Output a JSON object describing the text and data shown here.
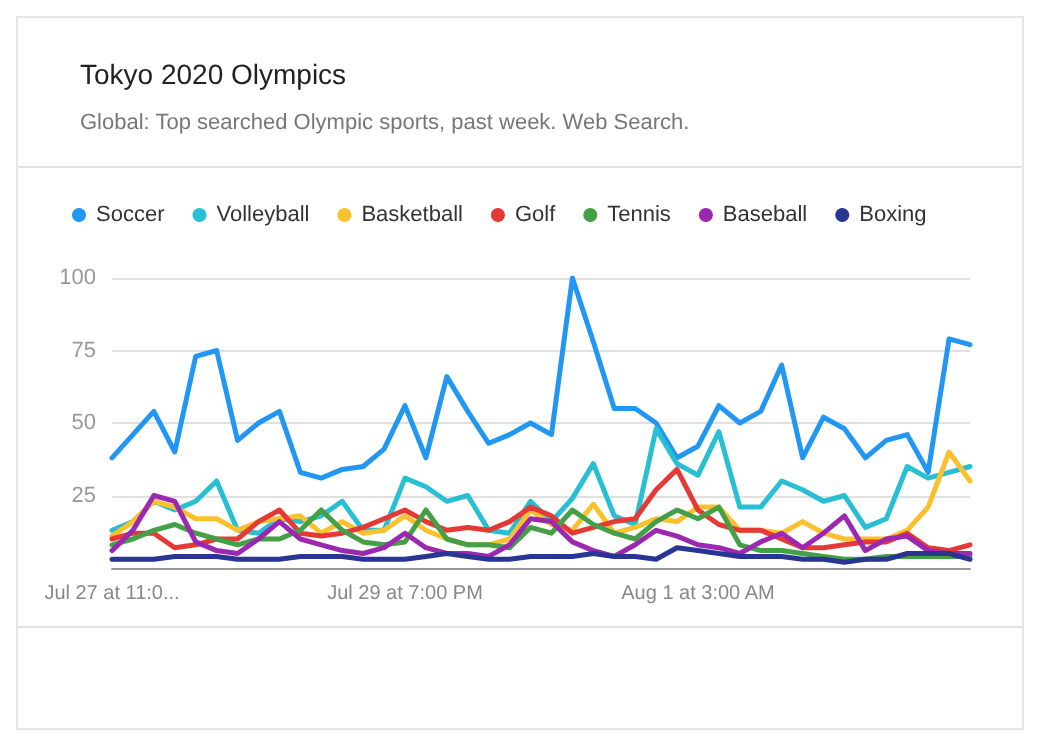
{
  "chart_data": {
    "type": "line",
    "title": "Tokyo 2020 Olympics",
    "subtitle": "Global: Top searched Olympic sports, past week. Web Search.",
    "categories": [
      "Jul 27 at 11:0...",
      null,
      null,
      null,
      null,
      null,
      null,
      null,
      null,
      null,
      null,
      null,
      null,
      null,
      "Jul 29 at 7:00 PM",
      null,
      null,
      null,
      null,
      null,
      null,
      null,
      null,
      null,
      null,
      null,
      null,
      null,
      "Aug 1 at 3:00 AM",
      null,
      null,
      null,
      null,
      null,
      null,
      null,
      null,
      null,
      null,
      null,
      null,
      null
    ],
    "series": [
      {
        "name": "Soccer",
        "color": "#2196f3",
        "values": [
          38,
          46,
          54,
          40,
          73,
          75,
          44,
          50,
          54,
          33,
          31,
          34,
          35,
          41,
          56,
          38,
          66,
          54,
          43,
          46,
          50,
          46,
          100,
          78,
          55,
          55,
          50,
          38,
          42,
          56,
          50,
          54,
          70,
          38,
          52,
          48,
          38,
          44,
          46,
          33,
          79,
          77
        ]
      },
      {
        "name": "Volleyball",
        "color": "#26bfd3",
        "values": [
          13,
          16,
          23,
          20,
          23,
          30,
          13,
          12,
          17,
          16,
          18,
          23,
          13,
          13,
          31,
          28,
          23,
          25,
          13,
          12,
          23,
          16,
          24,
          36,
          18,
          15,
          48,
          36,
          32,
          47,
          21,
          21,
          30,
          27,
          23,
          25,
          14,
          17,
          35,
          31,
          33,
          35
        ]
      },
      {
        "name": "Basketball",
        "color": "#fbc02d",
        "values": [
          11,
          16,
          23,
          21,
          17,
          17,
          13,
          16,
          17,
          18,
          12,
          16,
          12,
          13,
          18,
          13,
          10,
          8,
          8,
          10,
          20,
          15,
          13,
          22,
          12,
          14,
          17,
          16,
          21,
          21,
          13,
          13,
          12,
          16,
          12,
          10,
          10,
          10,
          13,
          21,
          40,
          30
        ]
      },
      {
        "name": "Golf",
        "color": "#e53935",
        "values": [
          10,
          12,
          12,
          7,
          8,
          10,
          10,
          16,
          20,
          12,
          11,
          12,
          14,
          17,
          20,
          16,
          13,
          14,
          13,
          16,
          21,
          18,
          12,
          14,
          16,
          17,
          27,
          34,
          20,
          15,
          13,
          13,
          10,
          7,
          7,
          8,
          9,
          9,
          12,
          7,
          6,
          8
        ]
      },
      {
        "name": "Tennis",
        "color": "#43a047",
        "values": [
          8,
          10,
          13,
          15,
          12,
          10,
          8,
          10,
          10,
          13,
          20,
          13,
          9,
          8,
          9,
          20,
          10,
          8,
          8,
          7,
          14,
          12,
          20,
          15,
          12,
          10,
          16,
          20,
          17,
          21,
          8,
          6,
          6,
          5,
          4,
          3,
          3,
          4,
          4,
          4,
          4,
          4
        ]
      },
      {
        "name": "Baseball",
        "color": "#9c27b0",
        "values": [
          6,
          13,
          25,
          23,
          9,
          6,
          5,
          10,
          16,
          10,
          8,
          6,
          5,
          7,
          12,
          7,
          5,
          5,
          4,
          8,
          17,
          16,
          9,
          6,
          4,
          8,
          13,
          11,
          8,
          7,
          5,
          9,
          12,
          7,
          12,
          18,
          6,
          10,
          11,
          6,
          5,
          5
        ]
      },
      {
        "name": "Boxing",
        "color": "#283593",
        "values": [
          3,
          3,
          3,
          4,
          4,
          4,
          3,
          3,
          3,
          4,
          4,
          4,
          3,
          3,
          3,
          4,
          5,
          4,
          3,
          3,
          4,
          4,
          4,
          5,
          4,
          4,
          3,
          7,
          6,
          5,
          4,
          4,
          4,
          3,
          3,
          2,
          3,
          3,
          5,
          5,
          5,
          3
        ]
      }
    ],
    "ylim": [
      0,
      100
    ],
    "yticks": [
      {
        "value": 0,
        "label": null
      },
      25,
      50,
      75,
      100
    ],
    "grid": "y",
    "legend": "top left",
    "marker": "none",
    "line_style": "solid"
  }
}
